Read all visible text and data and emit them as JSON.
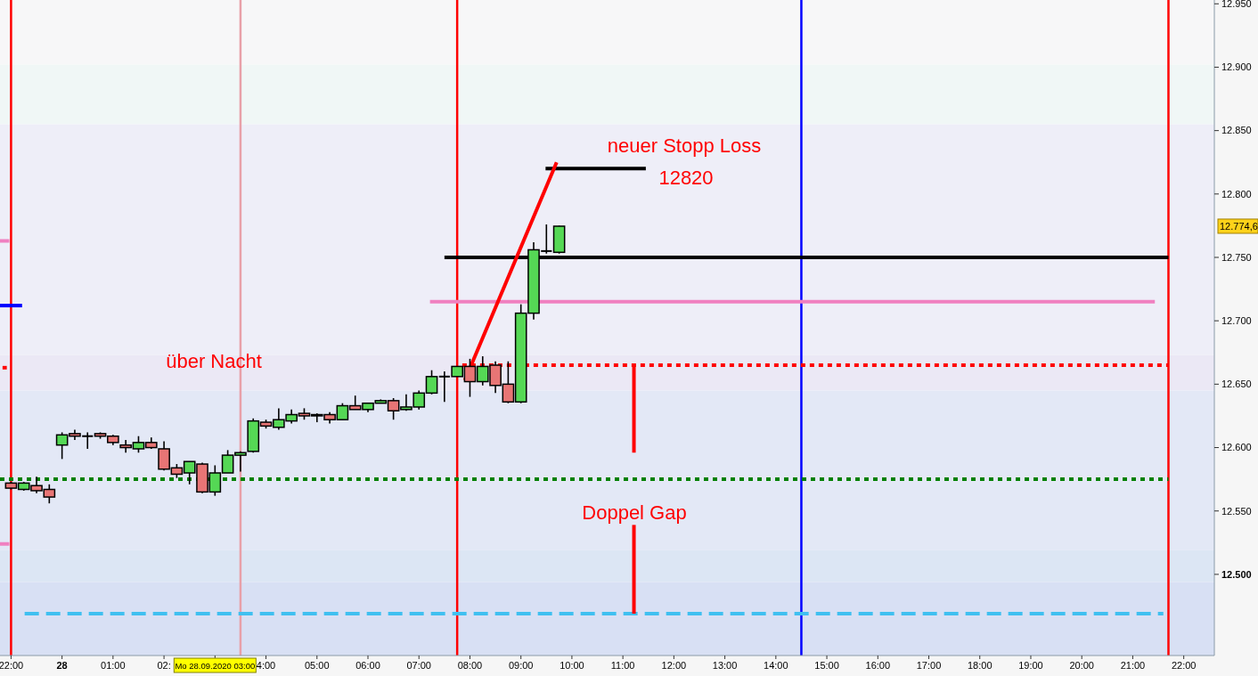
{
  "chart_data": {
    "type": "candlestick",
    "xlim": [
      "2020-09-27T22:47",
      "2020-09-28T22:36"
    ],
    "ylim": [
      12436,
      12953
    ],
    "xticks": [
      {
        "value": "2020-09-27T23:00",
        "label": "22:00"
      },
      {
        "value": "2020-09-28T00:00",
        "label": "28"
      },
      {
        "value": "2020-09-28T01:00",
        "label": "01:00"
      },
      {
        "value": "2020-09-28T02:00",
        "label": "02:"
      },
      {
        "value": "2020-09-28T03:00",
        "label": null
      },
      {
        "value": "2020-09-28T04:00",
        "label": "4:00"
      },
      {
        "value": "2020-09-28T05:00",
        "label": "05:00"
      },
      {
        "value": "2020-09-28T06:00",
        "label": "06:00"
      },
      {
        "value": "2020-09-28T07:00",
        "label": "07:00"
      },
      {
        "value": "2020-09-28T08:00",
        "label": "08:00"
      },
      {
        "value": "2020-09-28T09:00",
        "label": "09:00"
      },
      {
        "value": "2020-09-28T10:00",
        "label": "10:00"
      },
      {
        "value": "2020-09-28T11:00",
        "label": "11:00"
      },
      {
        "value": "2020-09-28T12:00",
        "label": "12:00"
      },
      {
        "value": "2020-09-28T13:00",
        "label": "13:00"
      },
      {
        "value": "2020-09-28T14:00",
        "label": "14:00"
      },
      {
        "value": "2020-09-28T15:00",
        "label": "15:00"
      },
      {
        "value": "2020-09-28T16:00",
        "label": "16:00"
      },
      {
        "value": "2020-09-28T17:00",
        "label": "17:00"
      },
      {
        "value": "2020-09-28T18:00",
        "label": "18:00"
      },
      {
        "value": "2020-09-28T19:00",
        "label": "19:00"
      },
      {
        "value": "2020-09-28T20:00",
        "label": "20:00"
      },
      {
        "value": "2020-09-28T21:00",
        "label": "21:00"
      },
      {
        "value": "2020-09-28T22:00",
        "label": "22:00"
      }
    ],
    "yticks": [
      {
        "value": 12500,
        "label": "12.500"
      },
      {
        "value": 12550,
        "label": "12.550"
      },
      {
        "value": 12600,
        "label": "12.600"
      },
      {
        "value": 12650,
        "label": "12.650"
      },
      {
        "value": 12700,
        "label": "12.700"
      },
      {
        "value": 12750,
        "label": "12.750"
      },
      {
        "value": 12800,
        "label": "12.800"
      },
      {
        "value": 12850,
        "label": "12.850"
      },
      {
        "value": 12900,
        "label": "12.900"
      },
      {
        "value": 12950,
        "label": "12.950"
      }
    ],
    "x": [
      "2020-09-27T23:00",
      "2020-09-27T23:15",
      "2020-09-27T23:30",
      "2020-09-27T23:45",
      "2020-09-28T00:00",
      "2020-09-28T00:15",
      "2020-09-28T00:30",
      "2020-09-28T00:45",
      "2020-09-28T01:00",
      "2020-09-28T01:15",
      "2020-09-28T01:30",
      "2020-09-28T01:45",
      "2020-09-28T02:00",
      "2020-09-28T02:15",
      "2020-09-28T02:30",
      "2020-09-28T02:45",
      "2020-09-28T03:00",
      "2020-09-28T03:15",
      "2020-09-28T03:30",
      "2020-09-28T03:45",
      "2020-09-28T04:00",
      "2020-09-28T04:15",
      "2020-09-28T04:30",
      "2020-09-28T04:45",
      "2020-09-28T05:00",
      "2020-09-28T05:15",
      "2020-09-28T05:30",
      "2020-09-28T05:45",
      "2020-09-28T06:00",
      "2020-09-28T06:15",
      "2020-09-28T06:30",
      "2020-09-28T06:45",
      "2020-09-28T07:00",
      "2020-09-28T07:15",
      "2020-09-28T07:30",
      "2020-09-28T07:45",
      "2020-09-28T08:00",
      "2020-09-28T08:15",
      "2020-09-28T08:30",
      "2020-09-28T08:45",
      "2020-09-28T09:00",
      "2020-09-28T09:15",
      "2020-09-28T09:30",
      "2020-09-28T09:45"
    ],
    "ohlc": [
      [
        12572,
        12573,
        12567,
        12568
      ],
      [
        12567,
        12573,
        12566,
        12572
      ],
      [
        12570,
        12577,
        12564,
        12566
      ],
      [
        12567,
        12571,
        12556,
        12561
      ],
      [
        12602,
        12612,
        12591,
        12610
      ],
      [
        12611,
        12614,
        12606,
        12609
      ],
      [
        12609,
        12612,
        12599,
        12609
      ],
      [
        12611,
        12612,
        12607,
        12609
      ],
      [
        12609,
        12610,
        12602,
        12604
      ],
      [
        12602,
        12606,
        12596,
        12600
      ],
      [
        12599,
        12609,
        12596,
        12604
      ],
      [
        12604,
        12608,
        12599,
        12600
      ],
      [
        12599,
        12605,
        12582,
        12583
      ],
      [
        12584,
        12587,
        12576,
        12579
      ],
      [
        12580,
        12589,
        12571,
        12589
      ],
      [
        12587,
        12588,
        12564,
        12565
      ],
      [
        12565,
        12586,
        12562,
        12580
      ],
      [
        12580,
        12598,
        12580,
        12594
      ],
      [
        12594,
        12597,
        12581,
        12596
      ],
      [
        12597,
        12623,
        12596,
        12621
      ],
      [
        12620,
        12622,
        12615,
        12617
      ],
      [
        12616,
        12631,
        12614,
        12622
      ],
      [
        12621,
        12630,
        12619,
        12626
      ],
      [
        12627,
        12631,
        12622,
        12625
      ],
      [
        12625,
        12627,
        12620,
        12626
      ],
      [
        12626,
        12628,
        12619,
        12622
      ],
      [
        12622,
        12635,
        12622,
        12633
      ],
      [
        12633,
        12641,
        12630,
        12630
      ],
      [
        12630,
        12635,
        12628,
        12635
      ],
      [
        12635,
        12638,
        12635,
        12637
      ],
      [
        12637,
        12639,
        12622,
        12629
      ],
      [
        12630,
        12642,
        12629,
        12632
      ],
      [
        12632,
        12645,
        12630,
        12643
      ],
      [
        12643,
        12661,
        12642,
        12656
      ],
      [
        12656,
        12660,
        12636,
        12656
      ],
      [
        12656,
        12664,
        12656,
        12664
      ],
      [
        12664,
        12670,
        12640,
        12652
      ],
      [
        12652,
        12672,
        12649,
        12664
      ],
      [
        12665,
        12668,
        12643,
        12649
      ],
      [
        12650,
        12668,
        12635,
        12636
      ],
      [
        12636,
        12713,
        12635,
        12706
      ],
      [
        12706,
        12762,
        12701,
        12756
      ],
      [
        12755,
        12776,
        12753,
        12755
      ],
      [
        12754,
        12775,
        12753,
        12774.6
      ]
    ],
    "colors": [
      "#e87575",
      "#55d855",
      "#e87575",
      "#e87575",
      "#55d855",
      "#e87575",
      "#000000",
      "#e87575",
      "#e87575",
      "#e87575",
      "#55d855",
      "#e87575",
      "#e87575",
      "#e87575",
      "#55d855",
      "#e87575",
      "#55d855",
      "#55d855",
      "#55d855",
      "#55d855",
      "#e87575",
      "#55d855",
      "#55d855",
      "#e87575",
      "#55d855",
      "#e87575",
      "#55d855",
      "#e87575",
      "#55d855",
      "#55d855",
      "#e87575",
      "#55d855",
      "#55d855",
      "#55d855",
      "#000000",
      "#55d855",
      "#e87575",
      "#55d855",
      "#e87575",
      "#e87575",
      "#55d855",
      "#55d855",
      "#000000",
      "#55d855"
    ],
    "series": [
      {
        "type": "line",
        "x": [
          "2020-09-28T07:30",
          "2020-09-28T21:42"
        ],
        "values": [
          12750,
          12750
        ],
        "color": "#000000",
        "line_style": "solid"
      },
      {
        "type": "line",
        "x": [
          "2020-09-28T07:13",
          "2020-09-28T21:26"
        ],
        "values": [
          12715,
          12715
        ],
        "color": "#f080c0",
        "line_style": "solid"
      },
      {
        "type": "line",
        "x": [
          "2020-09-28T07:51",
          "2020-09-28T21:42"
        ],
        "values": [
          12665,
          12665
        ],
        "color": "#ff0000",
        "line_style": "dotted"
      },
      {
        "type": "line",
        "x": [
          "2020-09-27T22:47",
          "2020-09-28T21:42"
        ],
        "values": [
          12575,
          12575
        ],
        "color": "#008000",
        "line_style": "dotted"
      },
      {
        "type": "line",
        "x": [
          "2020-09-27T23:16",
          "2020-09-28T21:36"
        ],
        "values": [
          12469,
          12469
        ],
        "color": "#40c0f0",
        "line_style": "dashed"
      },
      {
        "type": "line",
        "x": [
          "2020-09-28T09:29",
          "2020-09-28T11:27"
        ],
        "values": [
          12820,
          12820
        ],
        "color": "#000000",
        "line_style": "solid"
      },
      {
        "type": "line",
        "x": [
          "2020-09-28T07:54",
          "2020-09-28T09:42"
        ],
        "values": [
          12653,
          12825
        ],
        "color": "#ff0000",
        "line_style": "solid"
      },
      {
        "type": "line",
        "x": [
          "2020-09-28T11:13",
          "2020-09-28T11:13"
        ],
        "values": [
          12665,
          12596
        ],
        "color": "#ff0000",
        "line_style": "solid"
      },
      {
        "type": "line",
        "x": [
          "2020-09-28T11:13",
          "2020-09-28T11:13"
        ],
        "values": [
          12539,
          12469
        ],
        "color": "#ff0000",
        "line_style": "solid"
      },
      {
        "type": "line",
        "x": [
          "2020-09-27T22:47",
          "2020-09-27T23:13"
        ],
        "values": [
          12712,
          12712
        ],
        "color": "#0000ff",
        "line_style": "solid"
      },
      {
        "type": "line",
        "x": [
          "2020-09-27T22:47",
          "2020-09-27T22:58"
        ],
        "values": [
          12763,
          12763
        ],
        "color": "#f080c0",
        "line_style": "solid"
      },
      {
        "type": "line",
        "x": [
          "2020-09-27T22:47",
          "2020-09-27T22:58"
        ],
        "values": [
          12524,
          12524
        ],
        "color": "#f080c0",
        "line_style": "solid"
      },
      {
        "type": "line",
        "x": [
          "2020-09-27T22:50",
          "2020-09-27T22:55"
        ],
        "values": [
          12663,
          12663
        ],
        "color": "#ff0000",
        "line_style": "solid"
      }
    ],
    "ref_lines": [
      {
        "axis": "x",
        "value": "2020-09-27T23:00",
        "color": "#ff0000"
      },
      {
        "axis": "x",
        "value": "2020-09-28T03:30",
        "color": "#e8a0a8"
      },
      {
        "axis": "x",
        "value": "2020-09-28T07:45",
        "color": "#ff0000"
      },
      {
        "axis": "x",
        "value": "2020-09-28T14:30",
        "color": "#0000ff"
      },
      {
        "axis": "x",
        "value": "2020-09-28T21:42",
        "color": "#ff0000"
      }
    ],
    "bands": [
      {
        "axis": "y",
        "from": 12902,
        "to": 12953,
        "color": "#f7f7f8"
      },
      {
        "axis": "y",
        "from": 12855,
        "to": 12902,
        "color": "#f0f7f6"
      },
      {
        "axis": "y",
        "from": 12673,
        "to": 12855,
        "color": "#eeeef8"
      },
      {
        "axis": "y",
        "from": 12645,
        "to": 12673,
        "color": "#ebe8f5"
      },
      {
        "axis": "y",
        "from": 12519,
        "to": 12645,
        "color": "#e3e8f6"
      },
      {
        "axis": "y",
        "from": 12494,
        "to": 12519,
        "color": "#dce6f4"
      },
      {
        "axis": "y",
        "from": 12436,
        "to": 12494,
        "color": "#d8e0f4"
      }
    ],
    "annotations": [
      "über Nacht",
      "neuer Stopp Loss",
      "12820",
      "Doppel Gap",
      "12.774,6",
      "Mo 28.09.2020 03:00"
    ],
    "grid": false
  }
}
